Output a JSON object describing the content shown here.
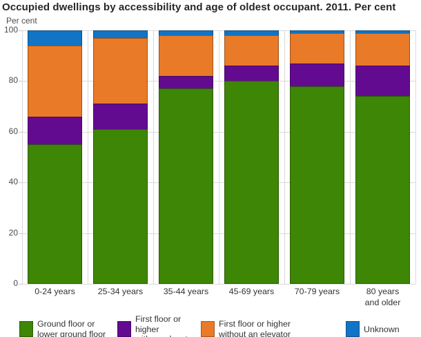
{
  "chart_data": {
    "type": "bar",
    "stacked": true,
    "title": "Occupied dwellings by accessibility and age of oldest occupant. 2011. Per cent",
    "xlabel": "",
    "ylabel": "Per cent",
    "ylim": [
      0,
      100
    ],
    "yticks": [
      0,
      20,
      40,
      60,
      80,
      100
    ],
    "grid": true,
    "legend_position": "bottom",
    "categories": [
      "0-24 years",
      "25-34 years",
      "35-44 years",
      "45-69 years",
      "70-79 years",
      "80 years and older"
    ],
    "category_label_lines": [
      [
        "0-24 years"
      ],
      [
        "25-34 years"
      ],
      [
        "35-44 years"
      ],
      [
        "45-69 years"
      ],
      [
        "70-79 years"
      ],
      [
        "80 years",
        "and older"
      ]
    ],
    "series": [
      {
        "name": "Ground floor or lower ground floor",
        "label_lines": [
          "Ground floor or",
          "lower ground floor"
        ],
        "color": "#3e8606",
        "values": [
          55,
          61,
          77,
          80,
          78,
          74
        ]
      },
      {
        "name": "First floor or higher with an elevator",
        "label_lines": [
          "First floor or higher",
          "with an elevator"
        ],
        "color": "#630b90",
        "values": [
          11,
          10,
          5,
          6,
          9,
          12
        ]
      },
      {
        "name": "First floor or higher without an elevator",
        "label_lines": [
          "First floor or higher",
          "without an elevator"
        ],
        "color": "#e87a28",
        "values": [
          28,
          26,
          16,
          12,
          12,
          13
        ]
      },
      {
        "name": "Unknown",
        "label_lines": [
          "Unknown"
        ],
        "color": "#1174c4",
        "values": [
          6,
          3,
          2,
          2,
          1,
          1
        ]
      }
    ]
  },
  "style": {
    "grid_color": "#d9d9d9",
    "tick_color": "#c9c9c9",
    "axis_text_color": "#4a4a4a",
    "label_text_color": "#333333",
    "title_color": "#262626"
  },
  "layout_legend_item_widths": [
    142,
    121,
    210,
    100
  ]
}
